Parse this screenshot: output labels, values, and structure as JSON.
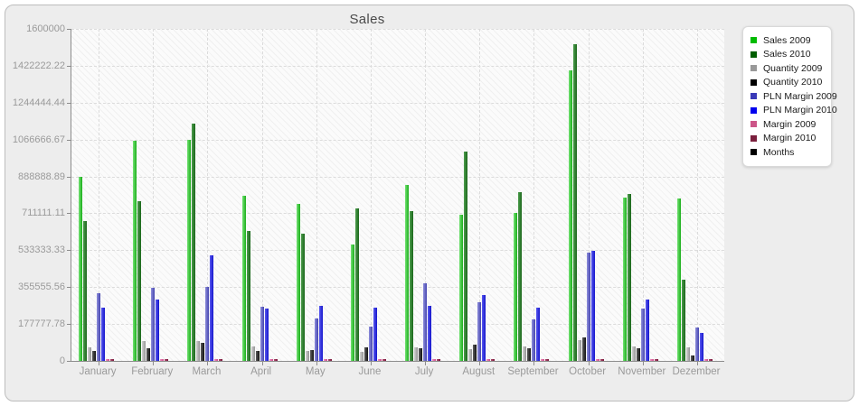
{
  "frame": {
    "background": "#ededed",
    "border_color": "#bdbdbd",
    "axis_color": "#8c8c8c",
    "grid_color": "#dcdcdc",
    "tick_label_color": "#9a9a9a",
    "title_color": "#4a4a4a"
  },
  "chart_data": {
    "type": "bar",
    "title": "Sales",
    "xlabel": "",
    "ylabel": "",
    "ylim": [
      0,
      1600000
    ],
    "y_tick_labels": [
      "1600000",
      "1422222.22",
      "1244444.44",
      "1066666.67",
      "888888.89",
      "711111.11",
      "533333.33",
      "355555.56",
      "177777.78",
      "0"
    ],
    "grid": "dashed horizontal at each y tick, dashed vertical at each month center",
    "legend_position": "right",
    "plot_background": "white with light diagonal hatching",
    "categories": [
      "January",
      "February",
      "March",
      "April",
      "May",
      "June",
      "July",
      "August",
      "September",
      "October",
      "November",
      "Dezember"
    ],
    "series": [
      {
        "name": "Sales 2009",
        "legend_color": "#00bb00",
        "bar_gradient": [
          "#76e276",
          "#19ae19"
        ],
        "values": [
          885000,
          1060000,
          1065000,
          795000,
          755000,
          560000,
          850000,
          705000,
          715000,
          1400000,
          787000,
          783000
        ]
      },
      {
        "name": "Sales 2010",
        "legend_color": "#005e00",
        "bar_gradient": [
          "#4e9e4e",
          "#1a661a"
        ],
        "values": [
          675000,
          770000,
          1145000,
          625000,
          615000,
          735000,
          720000,
          1010000,
          815000,
          1525000,
          805000,
          390000
        ]
      },
      {
        "name": "Quantity 2009",
        "legend_color": "#999999",
        "bar_gradient": [
          "#d2d2d2",
          "#949494"
        ],
        "values": [
          65000,
          95000,
          95000,
          70000,
          48000,
          45000,
          65000,
          57000,
          70000,
          100000,
          70000,
          65000
        ]
      },
      {
        "name": "Quantity 2010",
        "legend_color": "#000000",
        "bar_gradient": [
          "#606060",
          "#101010"
        ],
        "values": [
          50000,
          60000,
          85000,
          48000,
          52000,
          65000,
          60000,
          80000,
          60000,
          115000,
          60000,
          25000
        ]
      },
      {
        "name": "PLN Margin 2009",
        "legend_color": "#3a3ab8",
        "bar_gradient": [
          "#9090dc",
          "#4343ae"
        ],
        "values": [
          325000,
          352000,
          355000,
          260000,
          205000,
          165000,
          375000,
          283000,
          200000,
          520000,
          252000,
          160000
        ]
      },
      {
        "name": "PLN Margin 2010",
        "legend_color": "#0000ee",
        "bar_gradient": [
          "#5b5bf0",
          "#1414cc"
        ],
        "values": [
          255000,
          295000,
          510000,
          252000,
          265000,
          258000,
          265000,
          318000,
          258000,
          530000,
          295000,
          135000
        ]
      },
      {
        "name": "Margin 2009",
        "legend_color": "#cc5588",
        "bar_gradient": [
          "#f090c0",
          "#cc4e8a"
        ],
        "values": [
          9000,
          9000,
          9000,
          9000,
          9000,
          9000,
          9000,
          9000,
          9000,
          9000,
          9000,
          9000
        ]
      },
      {
        "name": "Margin 2010",
        "legend_color": "#7a1f3d",
        "bar_gradient": [
          "#b05070",
          "#76173a"
        ],
        "values": [
          7000,
          7000,
          7000,
          7000,
          7000,
          7000,
          7000,
          7000,
          7000,
          7000,
          7000,
          7000
        ]
      },
      {
        "name": "Months",
        "legend_color": "#000000",
        "bar_gradient": [
          "#555555",
          "#000000"
        ],
        "values": [
          1,
          2,
          3,
          4,
          5,
          6,
          7,
          8,
          9,
          10,
          11,
          12
        ]
      }
    ]
  }
}
